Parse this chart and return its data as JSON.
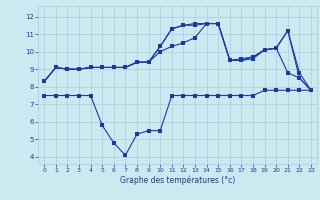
{
  "xlabel": "Graphe des températures (°c)",
  "bg_color": "#cce8f0",
  "grid_color": "#aaccdd",
  "line_color": "#1a3a9c",
  "x_ticks": [
    0,
    1,
    2,
    3,
    4,
    5,
    6,
    7,
    8,
    9,
    10,
    11,
    12,
    13,
    14,
    15,
    16,
    17,
    18,
    19,
    20,
    21,
    22,
    23
  ],
  "y_ticks": [
    4,
    5,
    6,
    7,
    8,
    9,
    10,
    11,
    12
  ],
  "ylim": [
    3.6,
    12.6
  ],
  "xlim": [
    -0.5,
    23.5
  ],
  "line1_x": [
    0,
    1,
    2,
    3,
    4,
    5,
    6,
    7,
    8,
    9,
    10,
    11,
    12,
    13,
    14,
    15,
    16,
    17,
    18,
    19,
    20,
    21,
    22,
    23
  ],
  "line1_y": [
    8.3,
    9.1,
    9.0,
    9.0,
    9.1,
    9.1,
    9.1,
    9.1,
    9.4,
    9.4,
    10.0,
    10.3,
    10.5,
    10.8,
    11.6,
    11.6,
    9.5,
    9.5,
    9.6,
    10.1,
    10.2,
    8.8,
    8.5,
    7.8
  ],
  "line2_x": [
    0,
    1,
    2,
    3,
    4,
    5,
    6,
    7,
    8,
    9,
    10,
    11,
    12,
    13,
    14,
    15,
    16,
    17,
    18,
    19,
    20,
    21,
    22,
    23
  ],
  "line2_y": [
    8.3,
    9.1,
    9.0,
    9.0,
    9.1,
    9.1,
    9.1,
    9.1,
    9.4,
    9.4,
    10.3,
    11.3,
    11.5,
    11.5,
    11.6,
    11.6,
    9.5,
    9.5,
    9.7,
    10.1,
    10.2,
    11.2,
    8.8,
    7.8
  ],
  "line3_x": [
    0,
    1,
    2,
    3,
    4,
    5,
    6,
    7,
    8,
    9,
    10,
    11,
    12,
    13,
    14,
    15,
    16,
    17,
    18,
    19,
    20,
    21,
    22,
    23
  ],
  "line3_y": [
    8.3,
    9.1,
    9.0,
    9.0,
    9.1,
    9.1,
    9.1,
    9.1,
    9.4,
    9.4,
    10.3,
    11.3,
    11.5,
    11.6,
    11.6,
    11.6,
    9.5,
    9.6,
    9.7,
    10.1,
    10.2,
    11.2,
    8.5,
    7.8
  ],
  "line4_x": [
    0,
    1,
    2,
    3,
    4,
    5,
    6,
    7,
    8,
    9,
    10,
    11,
    12,
    13,
    14,
    15,
    16,
    17,
    18,
    19,
    20,
    21,
    22,
    23
  ],
  "line4_y": [
    7.5,
    7.5,
    7.5,
    7.5,
    7.5,
    5.8,
    4.8,
    4.1,
    5.3,
    5.5,
    5.5,
    7.5,
    7.5,
    7.5,
    7.5,
    7.5,
    7.5,
    7.5,
    7.5,
    7.8,
    7.8,
    7.8,
    7.8,
    7.8
  ]
}
